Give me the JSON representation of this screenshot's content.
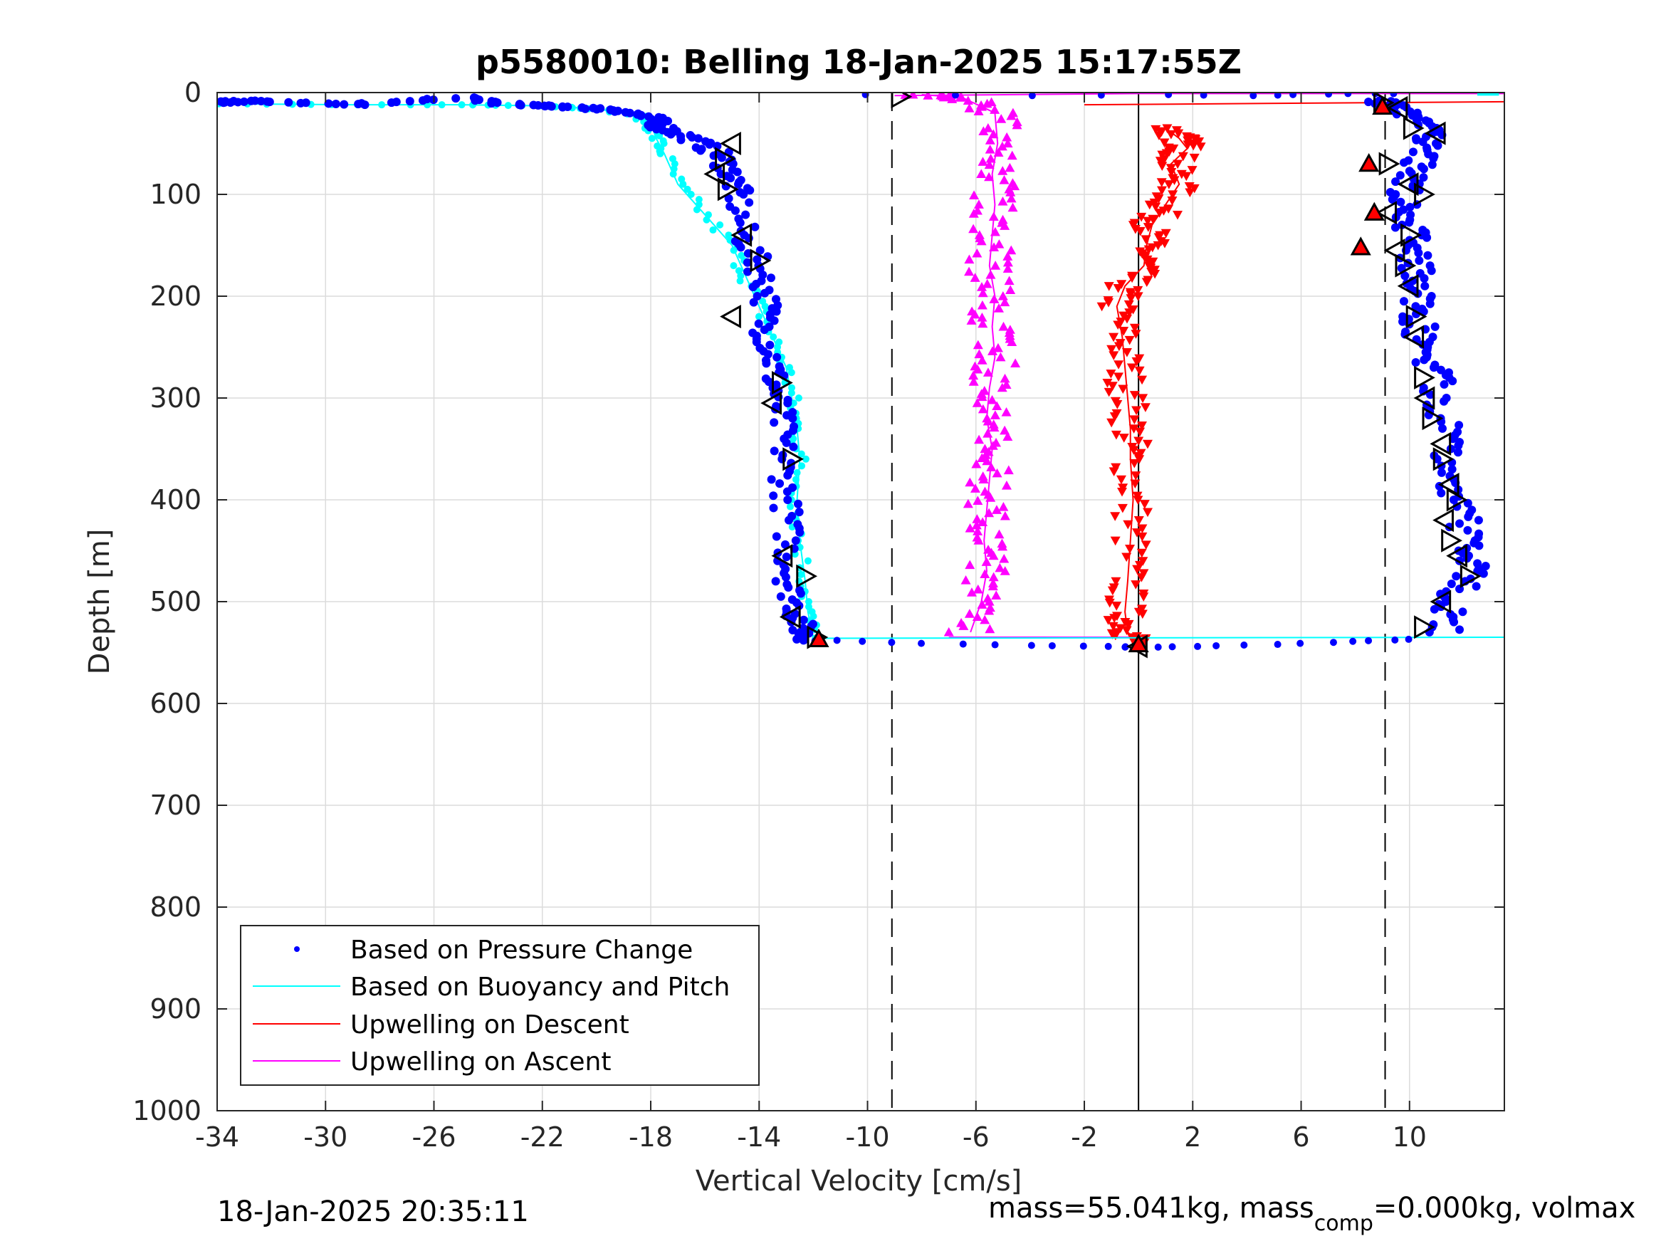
{
  "chart_data": {
    "type": "scatter",
    "title": "p5580010: Belling 18-Jan-2025 15:17:55Z",
    "xlabel": "Vertical Velocity [cm/s]",
    "ylabel": "Depth [m]",
    "xlim": [
      -34,
      13.5
    ],
    "ylim": [
      0,
      1000
    ],
    "y_reversed": true,
    "grid": true,
    "x_ticks": [
      -34,
      -30,
      -26,
      -22,
      -18,
      -14,
      -10,
      -6,
      -2,
      2,
      6,
      10
    ],
    "y_ticks": [
      0,
      100,
      200,
      300,
      400,
      500,
      600,
      700,
      800,
      900,
      1000
    ],
    "x_tick_labels": [
      "-34",
      "-30",
      "-26",
      "-22",
      "-18",
      "-14",
      "-10",
      "-6",
      "-2",
      "2",
      "6",
      "10"
    ],
    "y_tick_labels": [
      "0",
      "100",
      "200",
      "300",
      "400",
      "500",
      "600",
      "700",
      "800",
      "900",
      "1000"
    ],
    "reference_lines": [
      {
        "x": -9.1,
        "style": "dashed"
      },
      {
        "x": 0,
        "style": "solid"
      },
      {
        "x": 9.1,
        "style": "dashed"
      }
    ],
    "legend_position": "bottom-left",
    "series": [
      {
        "name": "Based on Pressure Change",
        "color": "#0000ff",
        "marker": "dot",
        "descent": [
          [
            -34,
            10
          ],
          [
            -33,
            8
          ],
          [
            -29,
            12
          ],
          [
            -25,
            5
          ],
          [
            -23,
            12
          ],
          [
            -21,
            14
          ],
          [
            -19,
            18
          ],
          [
            -18,
            25
          ],
          [
            -17.5,
            35
          ],
          [
            -16.5,
            45
          ],
          [
            -15.5,
            60
          ],
          [
            -15,
            80
          ],
          [
            -14.8,
            100
          ],
          [
            -14.6,
            140
          ],
          [
            -14,
            170
          ],
          [
            -13.7,
            200
          ],
          [
            -13.8,
            230
          ],
          [
            -13.5,
            260
          ],
          [
            -13.4,
            290
          ],
          [
            -13.2,
            320
          ],
          [
            -13.1,
            360
          ],
          [
            -13,
            400
          ],
          [
            -12.9,
            440
          ],
          [
            -12.9,
            480
          ],
          [
            -12.6,
            510
          ],
          [
            -12.4,
            530
          ],
          [
            -12,
            540
          ]
        ],
        "ascent": [
          [
            11.3,
            530
          ],
          [
            11.5,
            500
          ],
          [
            12.3,
            470
          ],
          [
            12.2,
            440
          ],
          [
            11.8,
            400
          ],
          [
            11.5,
            360
          ],
          [
            11.3,
            320
          ],
          [
            11,
            280
          ],
          [
            10.5,
            250
          ],
          [
            10.3,
            220
          ],
          [
            10.4,
            190
          ],
          [
            10.2,
            160
          ],
          [
            10,
            130
          ],
          [
            9.8,
            100
          ],
          [
            10.2,
            75
          ],
          [
            10.8,
            50
          ],
          [
            10.5,
            30
          ],
          [
            9.5,
            15
          ],
          [
            9,
            8
          ]
        ],
        "bottom_turn": [
          [
            -11,
            538
          ],
          [
            -8,
            541
          ],
          [
            -4,
            543
          ],
          [
            -1,
            544
          ],
          [
            0,
            545
          ],
          [
            2,
            544
          ],
          [
            5,
            542
          ],
          [
            8,
            539
          ],
          [
            10,
            537
          ]
        ],
        "surface": [
          [
            -10,
            2
          ],
          [
            -4,
            3
          ],
          [
            1,
            2
          ],
          [
            4,
            3
          ],
          [
            6,
            2
          ],
          [
            8,
            1
          ],
          [
            9.5,
            1
          ]
        ]
      },
      {
        "name": "Based on Buoyancy and Pitch",
        "color": "#00ffff",
        "marker": "line",
        "descent": [
          [
            -34,
            11
          ],
          [
            -29,
            12
          ],
          [
            -25,
            12
          ],
          [
            -22,
            13
          ],
          [
            -20,
            16
          ],
          [
            -18.5,
            22
          ],
          [
            -18,
            30
          ],
          [
            -17.8,
            45
          ],
          [
            -17.5,
            60
          ],
          [
            -17,
            90
          ],
          [
            -16,
            120
          ],
          [
            -15,
            150
          ],
          [
            -14.5,
            180
          ],
          [
            -14,
            210
          ],
          [
            -13.5,
            240
          ],
          [
            -13,
            270
          ],
          [
            -12.8,
            300
          ],
          [
            -12.6,
            330
          ],
          [
            -12.5,
            360
          ],
          [
            -12.6,
            400
          ],
          [
            -12.5,
            440
          ],
          [
            -12.3,
            480
          ],
          [
            -12.2,
            510
          ],
          [
            -12,
            536
          ]
        ],
        "bottom_line": [
          [
            -12,
            536
          ],
          [
            13.5,
            535
          ]
        ],
        "surface": [
          [
            12.5,
            1
          ],
          [
            13.3,
            1
          ]
        ]
      },
      {
        "name": "Upwelling on Descent",
        "color": "#ff0000",
        "marker": "down-triangle",
        "trace": [
          [
            1,
            35
          ],
          [
            1.5,
            45
          ],
          [
            1.8,
            55
          ],
          [
            1.2,
            70
          ],
          [
            1.5,
            90
          ],
          [
            1,
            110
          ],
          [
            0.5,
            130
          ],
          [
            0.3,
            150
          ],
          [
            0.2,
            170
          ],
          [
            -0.5,
            190
          ],
          [
            -0.8,
            210
          ],
          [
            -0.6,
            240
          ],
          [
            -0.5,
            270
          ],
          [
            -0.4,
            300
          ],
          [
            -0.3,
            330
          ],
          [
            -0.3,
            360
          ],
          [
            -0.2,
            400
          ],
          [
            -0.3,
            440
          ],
          [
            -0.4,
            480
          ],
          [
            -0.5,
            510
          ],
          [
            -0.4,
            530
          ],
          [
            0,
            540
          ]
        ],
        "surface_line": [
          [
            -2,
            12
          ],
          [
            13.5,
            9
          ]
        ]
      },
      {
        "name": "Upwelling on Ascent",
        "color": "#ff00ff",
        "marker": "up-triangle",
        "trace": [
          [
            -6.2,
            530
          ],
          [
            -5.8,
            500
          ],
          [
            -5.6,
            470
          ],
          [
            -5.7,
            440
          ],
          [
            -5.6,
            410
          ],
          [
            -5.5,
            380
          ],
          [
            -5.4,
            350
          ],
          [
            -5.6,
            320
          ],
          [
            -5.5,
            290
          ],
          [
            -5.3,
            260
          ],
          [
            -5.4,
            230
          ],
          [
            -5.3,
            200
          ],
          [
            -5.5,
            170
          ],
          [
            -5.4,
            140
          ],
          [
            -5.3,
            110
          ],
          [
            -5.4,
            80
          ],
          [
            -5.2,
            50
          ],
          [
            -5.3,
            20
          ],
          [
            -6.5,
            5
          ],
          [
            -8,
            2
          ]
        ],
        "bottom_line": [
          [
            -7,
            535
          ],
          [
            0,
            535
          ]
        ],
        "surface_line": [
          [
            -9,
            3
          ],
          [
            0,
            1
          ],
          [
            13.5,
            1
          ]
        ]
      }
    ],
    "dive_markers_descent": [
      [
        -15,
        50
      ],
      [
        -15.3,
        65
      ],
      [
        -15.6,
        80
      ],
      [
        -15.2,
        95
      ],
      [
        -14.6,
        140
      ],
      [
        -14,
        165
      ],
      [
        -15,
        220
      ],
      [
        -13.2,
        285
      ],
      [
        -13.5,
        305
      ],
      [
        -12.8,
        360
      ],
      [
        -13.1,
        455
      ],
      [
        -12.3,
        475
      ],
      [
        -12.8,
        515
      ],
      [
        -11.9,
        535
      ]
    ],
    "dive_markers_ascent": [
      [
        9,
        10
      ],
      [
        9.6,
        15
      ],
      [
        10.1,
        35
      ],
      [
        11,
        40
      ],
      [
        9.2,
        70
      ],
      [
        10,
        90
      ],
      [
        10.5,
        100
      ],
      [
        9.2,
        118
      ],
      [
        10,
        140
      ],
      [
        9.5,
        155
      ],
      [
        9.8,
        170
      ],
      [
        10,
        190
      ],
      [
        10.2,
        220
      ],
      [
        10.2,
        240
      ],
      [
        10.5,
        280
      ],
      [
        10.6,
        300
      ],
      [
        10.8,
        320
      ],
      [
        11.2,
        345
      ],
      [
        11.2,
        360
      ],
      [
        11.5,
        385
      ],
      [
        11.7,
        400
      ],
      [
        11.3,
        420
      ],
      [
        11.5,
        440
      ],
      [
        11.8,
        455
      ],
      [
        12.2,
        475
      ],
      [
        11.2,
        500
      ],
      [
        10.5,
        525
      ],
      [
        0,
        544
      ],
      [
        -8.8,
        4
      ]
    ],
    "red_markers": [
      [
        9,
        14
      ],
      [
        8.5,
        70
      ],
      [
        8.7,
        118
      ],
      [
        8.2,
        152
      ],
      [
        -11.8,
        537
      ],
      [
        0,
        542
      ]
    ]
  },
  "footer": {
    "timestamp": "18-Jan-2025 20:35:11",
    "mass_text_a": "mass=55.041kg, mass",
    "mass_subscript": "comp",
    "mass_text_b": "=0.000kg, volmax"
  }
}
